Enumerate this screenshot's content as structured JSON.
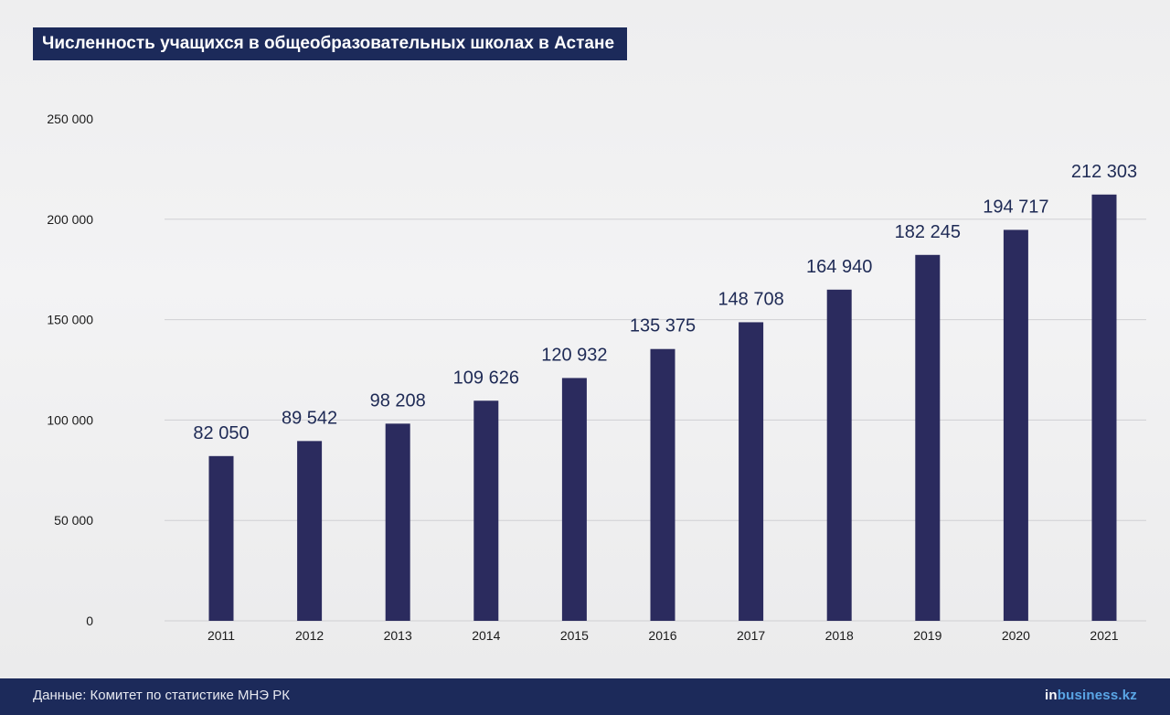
{
  "colors": {
    "bar": "#2b2b5e",
    "title_bg": "#1c2a5a",
    "footer_bg": "#1c2a5a",
    "brand_accent": "#5aa6e6",
    "grid": "#cfcfd4",
    "text": "#1a1a1a",
    "label": "#1e2a55"
  },
  "footer": {
    "source": "Данные: Комитет по статистике МНЭ РК",
    "brand_prefix": "in",
    "brand_suffix": "business.kz"
  },
  "chart_data": {
    "type": "bar",
    "title": "Численность учащихся в общеобразовательных школах в Астане",
    "categories": [
      "2011",
      "2012",
      "2013",
      "2014",
      "2015",
      "2016",
      "2017",
      "2018",
      "2019",
      "2020",
      "2021"
    ],
    "values": [
      82050,
      89542,
      98208,
      109626,
      120932,
      135375,
      148708,
      164940,
      182245,
      194717,
      212303
    ],
    "value_labels": [
      "82 050",
      "89 542",
      "98 208",
      "109 626",
      "120 932",
      "135 375",
      "148 708",
      "164 940",
      "182 245",
      "194 717",
      "212 303"
    ],
    "ylim": [
      0,
      250000
    ],
    "yticks": [
      0,
      50000,
      100000,
      150000,
      200000,
      250000
    ],
    "ytick_labels": [
      "0",
      "50 000",
      "100 000",
      "150 000",
      "200 000",
      "250 000"
    ],
    "xlabel": "",
    "ylabel": "",
    "grid": true,
    "legend": "none"
  }
}
